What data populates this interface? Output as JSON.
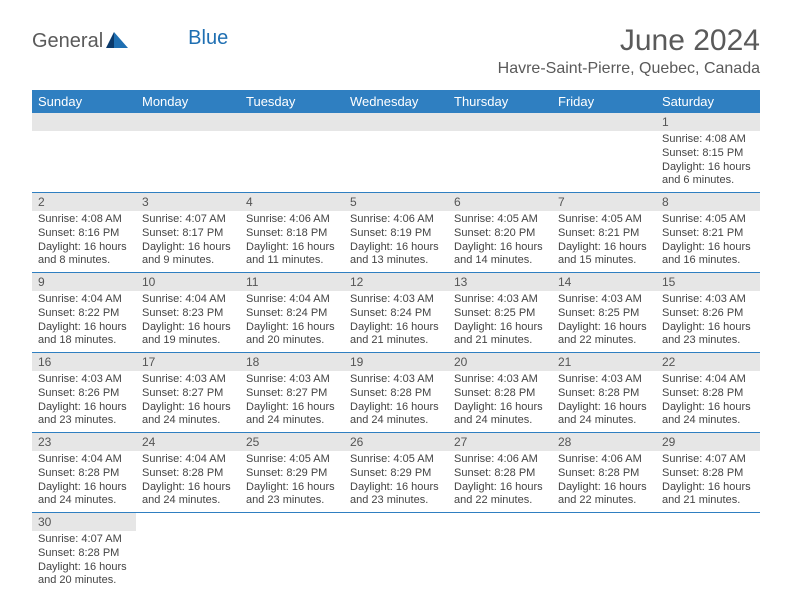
{
  "brand": {
    "part1": "General",
    "part2": "Blue"
  },
  "title": "June 2024",
  "location": "Havre-Saint-Pierre, Quebec, Canada",
  "colors": {
    "header_bg": "#2f7fc1",
    "header_text": "#ffffff",
    "daynum_bg": "#e6e6e6",
    "rule": "#2f7fc1",
    "brand_grey": "#5a5a5a",
    "brand_blue": "#1f6fb2"
  },
  "weekdays": [
    "Sunday",
    "Monday",
    "Tuesday",
    "Wednesday",
    "Thursday",
    "Friday",
    "Saturday"
  ],
  "weeks": [
    [
      null,
      null,
      null,
      null,
      null,
      null,
      {
        "n": "1",
        "sr": "Sunrise: 4:08 AM",
        "ss": "Sunset: 8:15 PM",
        "dl": "Daylight: 16 hours and 6 minutes."
      }
    ],
    [
      {
        "n": "2",
        "sr": "Sunrise: 4:08 AM",
        "ss": "Sunset: 8:16 PM",
        "dl": "Daylight: 16 hours and 8 minutes."
      },
      {
        "n": "3",
        "sr": "Sunrise: 4:07 AM",
        "ss": "Sunset: 8:17 PM",
        "dl": "Daylight: 16 hours and 9 minutes."
      },
      {
        "n": "4",
        "sr": "Sunrise: 4:06 AM",
        "ss": "Sunset: 8:18 PM",
        "dl": "Daylight: 16 hours and 11 minutes."
      },
      {
        "n": "5",
        "sr": "Sunrise: 4:06 AM",
        "ss": "Sunset: 8:19 PM",
        "dl": "Daylight: 16 hours and 13 minutes."
      },
      {
        "n": "6",
        "sr": "Sunrise: 4:05 AM",
        "ss": "Sunset: 8:20 PM",
        "dl": "Daylight: 16 hours and 14 minutes."
      },
      {
        "n": "7",
        "sr": "Sunrise: 4:05 AM",
        "ss": "Sunset: 8:21 PM",
        "dl": "Daylight: 16 hours and 15 minutes."
      },
      {
        "n": "8",
        "sr": "Sunrise: 4:05 AM",
        "ss": "Sunset: 8:21 PM",
        "dl": "Daylight: 16 hours and 16 minutes."
      }
    ],
    [
      {
        "n": "9",
        "sr": "Sunrise: 4:04 AM",
        "ss": "Sunset: 8:22 PM",
        "dl": "Daylight: 16 hours and 18 minutes."
      },
      {
        "n": "10",
        "sr": "Sunrise: 4:04 AM",
        "ss": "Sunset: 8:23 PM",
        "dl": "Daylight: 16 hours and 19 minutes."
      },
      {
        "n": "11",
        "sr": "Sunrise: 4:04 AM",
        "ss": "Sunset: 8:24 PM",
        "dl": "Daylight: 16 hours and 20 minutes."
      },
      {
        "n": "12",
        "sr": "Sunrise: 4:03 AM",
        "ss": "Sunset: 8:24 PM",
        "dl": "Daylight: 16 hours and 21 minutes."
      },
      {
        "n": "13",
        "sr": "Sunrise: 4:03 AM",
        "ss": "Sunset: 8:25 PM",
        "dl": "Daylight: 16 hours and 21 minutes."
      },
      {
        "n": "14",
        "sr": "Sunrise: 4:03 AM",
        "ss": "Sunset: 8:25 PM",
        "dl": "Daylight: 16 hours and 22 minutes."
      },
      {
        "n": "15",
        "sr": "Sunrise: 4:03 AM",
        "ss": "Sunset: 8:26 PM",
        "dl": "Daylight: 16 hours and 23 minutes."
      }
    ],
    [
      {
        "n": "16",
        "sr": "Sunrise: 4:03 AM",
        "ss": "Sunset: 8:26 PM",
        "dl": "Daylight: 16 hours and 23 minutes."
      },
      {
        "n": "17",
        "sr": "Sunrise: 4:03 AM",
        "ss": "Sunset: 8:27 PM",
        "dl": "Daylight: 16 hours and 24 minutes."
      },
      {
        "n": "18",
        "sr": "Sunrise: 4:03 AM",
        "ss": "Sunset: 8:27 PM",
        "dl": "Daylight: 16 hours and 24 minutes."
      },
      {
        "n": "19",
        "sr": "Sunrise: 4:03 AM",
        "ss": "Sunset: 8:28 PM",
        "dl": "Daylight: 16 hours and 24 minutes."
      },
      {
        "n": "20",
        "sr": "Sunrise: 4:03 AM",
        "ss": "Sunset: 8:28 PM",
        "dl": "Daylight: 16 hours and 24 minutes."
      },
      {
        "n": "21",
        "sr": "Sunrise: 4:03 AM",
        "ss": "Sunset: 8:28 PM",
        "dl": "Daylight: 16 hours and 24 minutes."
      },
      {
        "n": "22",
        "sr": "Sunrise: 4:04 AM",
        "ss": "Sunset: 8:28 PM",
        "dl": "Daylight: 16 hours and 24 minutes."
      }
    ],
    [
      {
        "n": "23",
        "sr": "Sunrise: 4:04 AM",
        "ss": "Sunset: 8:28 PM",
        "dl": "Daylight: 16 hours and 24 minutes."
      },
      {
        "n": "24",
        "sr": "Sunrise: 4:04 AM",
        "ss": "Sunset: 8:28 PM",
        "dl": "Daylight: 16 hours and 24 minutes."
      },
      {
        "n": "25",
        "sr": "Sunrise: 4:05 AM",
        "ss": "Sunset: 8:29 PM",
        "dl": "Daylight: 16 hours and 23 minutes."
      },
      {
        "n": "26",
        "sr": "Sunrise: 4:05 AM",
        "ss": "Sunset: 8:29 PM",
        "dl": "Daylight: 16 hours and 23 minutes."
      },
      {
        "n": "27",
        "sr": "Sunrise: 4:06 AM",
        "ss": "Sunset: 8:28 PM",
        "dl": "Daylight: 16 hours and 22 minutes."
      },
      {
        "n": "28",
        "sr": "Sunrise: 4:06 AM",
        "ss": "Sunset: 8:28 PM",
        "dl": "Daylight: 16 hours and 22 minutes."
      },
      {
        "n": "29",
        "sr": "Sunrise: 4:07 AM",
        "ss": "Sunset: 8:28 PM",
        "dl": "Daylight: 16 hours and 21 minutes."
      }
    ],
    [
      {
        "n": "30",
        "sr": "Sunrise: 4:07 AM",
        "ss": "Sunset: 8:28 PM",
        "dl": "Daylight: 16 hours and 20 minutes."
      },
      null,
      null,
      null,
      null,
      null,
      null
    ]
  ]
}
